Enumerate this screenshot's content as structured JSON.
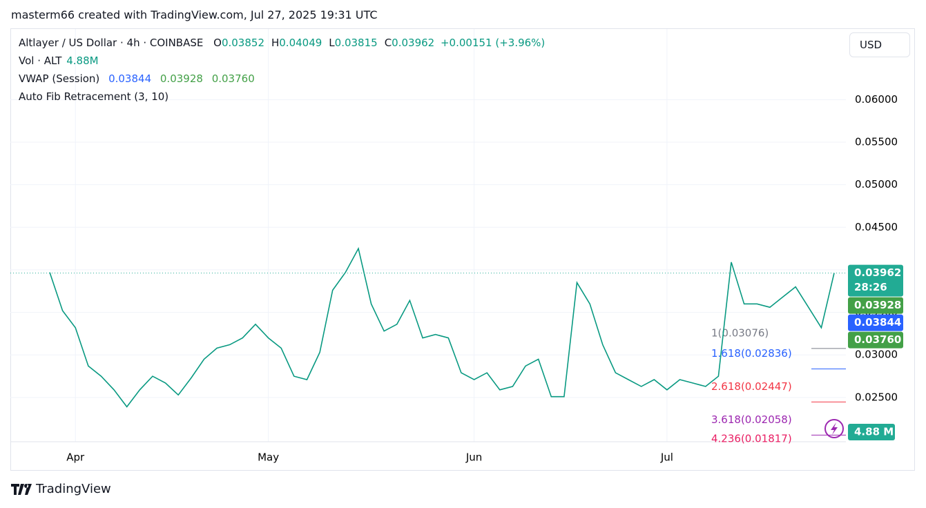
{
  "header": "masterm66 created with TradingView.com, Jul 27, 2025 19:31 UTC",
  "legend": {
    "symbol": "Altlayer / US Dollar · 4h · COINBASE",
    "ohlc": [
      {
        "key": "O",
        "value": "0.03852"
      },
      {
        "key": "H",
        "value": "0.04049"
      },
      {
        "key": "L",
        "value": "0.03815"
      },
      {
        "key": "C",
        "value": "0.03962"
      }
    ],
    "change": "+0.00151 (+3.96%)",
    "volume_name": "Vol · ALT",
    "volume_value": "4.88M",
    "vwap_name": "VWAP (Session)",
    "vwap_values": [
      "0.03844",
      "0.03928",
      "0.03760"
    ],
    "fib_name": "Auto Fib Retracement (3, 10)"
  },
  "currency_button": "USD",
  "footer": "TradingView",
  "chart_data": {
    "type": "line",
    "color": "#089981",
    "categories": [
      null,
      null,
      "Apr",
      null,
      null,
      null,
      null,
      null,
      null,
      null,
      null,
      null,
      null,
      null,
      null,
      null,
      null,
      "May",
      null,
      null,
      null,
      null,
      null,
      null,
      null,
      null,
      null,
      null,
      null,
      null,
      null,
      null,
      null,
      "Jun",
      null,
      null,
      null,
      null,
      null,
      null,
      null,
      null,
      null,
      null,
      null,
      null,
      null,
      null,
      "Jul",
      null,
      null,
      null,
      null,
      null,
      null,
      null,
      null,
      null,
      null,
      null,
      null,
      null
    ],
    "values": [
      0.0397,
      0.0352,
      0.0332,
      0.0287,
      0.0275,
      0.0259,
      0.0239,
      0.0259,
      0.0275,
      0.0267,
      0.0253,
      0.0273,
      0.0295,
      0.0308,
      0.0312,
      0.032,
      0.0336,
      0.032,
      0.0308,
      0.0275,
      0.0271,
      0.0303,
      0.0376,
      0.0397,
      0.0425,
      0.036,
      0.0328,
      0.0336,
      0.0364,
      0.032,
      0.0324,
      0.032,
      0.0279,
      0.0271,
      0.0279,
      0.0259,
      0.0263,
      0.0287,
      0.0295,
      0.0251,
      0.0251,
      0.0385,
      0.036,
      0.0312,
      0.0279,
      0.0271,
      0.0263,
      0.0271,
      0.0259,
      0.0271,
      0.0267,
      0.0263,
      0.0275,
      0.0409,
      0.036,
      0.036,
      0.0356,
      0.0368,
      0.038,
      0.0356,
      0.0332,
      0.03962
    ],
    "ylim": [
      0.0198,
      0.0683
    ],
    "yticks": [
      {
        "value": 0.025,
        "label": "0.02500"
      },
      {
        "value": 0.03,
        "label": "0.03000"
      },
      {
        "value": 0.035,
        "label": "0.03500"
      },
      {
        "value": 0.04,
        "label": "0.04000"
      },
      {
        "value": 0.045,
        "label": "0.04500"
      },
      {
        "value": 0.05,
        "label": "0.05000"
      },
      {
        "value": 0.055,
        "label": "0.05500"
      },
      {
        "value": 0.06,
        "label": "0.06000"
      }
    ],
    "grid": true,
    "fib_levels": [
      {
        "value": 0.03076,
        "label": "1(0.03076)",
        "color": "#787b86"
      },
      {
        "value": 0.02836,
        "label": "1.618(0.02836)",
        "color": "#2962ff"
      },
      {
        "value": 0.02447,
        "label": "2.618(0.02447)",
        "color": "#f23645"
      },
      {
        "value": 0.02058,
        "label": "3.618(0.02058)",
        "color": "#9c27b0"
      },
      {
        "value": 0.01817,
        "label": "4.236(0.01817)",
        "color": "#e91e63"
      }
    ],
    "price_badges": [
      {
        "label": "0.03962",
        "sub": "28:26",
        "color": "#22ab94"
      },
      {
        "label": "0.03928",
        "color": "#43a047"
      },
      {
        "label": "0.03844",
        "color": "#2962ff"
      },
      {
        "label": "0.03760",
        "color": "#43a047"
      }
    ],
    "volume_badge": {
      "label": "4.88 M",
      "color": "#22ab94"
    }
  }
}
